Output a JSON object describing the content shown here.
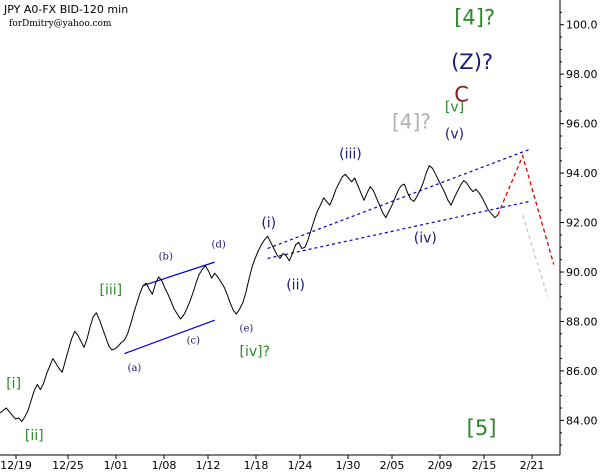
{
  "header": {
    "title": "JPY A0-FX BID-120 min",
    "subtitle": "forDmitry@yahoo.com"
  },
  "colors": {
    "price": "#000000",
    "channel_blue": "#0000cc",
    "wave_green": "#2a8a2a",
    "wave_navy": "#1a1a7a",
    "wave_gray": "#b0b0b0",
    "wave_darkred": "#8b1a1a",
    "forecast_red": "#e00000",
    "forecast_gray": "#c8c8c8",
    "axis": "#000000"
  },
  "chart_data": {
    "type": "line",
    "title": "JPY A0-FX BID-120 min",
    "xlabel": "",
    "ylabel": "",
    "ylim": [
      82.6,
      101.0
    ],
    "y_ticks": [
      "84.00",
      "86.00",
      "88.00",
      "90.00",
      "92.00",
      "94.00",
      "96.00",
      "98.00",
      "100.0"
    ],
    "y_tick_values": [
      84,
      86,
      88,
      90,
      92,
      94,
      96,
      98,
      100
    ],
    "x_ticks": [
      "12/19",
      "12/25",
      "1/01",
      "1/08",
      "1/12",
      "1/18",
      "1/24",
      "1/30",
      "2/05",
      "2/09",
      "2/15",
      "2/21"
    ],
    "grid": false,
    "series": [
      {
        "key": "price",
        "x": [
          0,
          1,
          2,
          3,
          4,
          5,
          6,
          7,
          8,
          9,
          10,
          11,
          12,
          13,
          14,
          15,
          16,
          17,
          18,
          19,
          20,
          21,
          22,
          23,
          24,
          25,
          26,
          27,
          28,
          29,
          30,
          31,
          32,
          33,
          34,
          35,
          36,
          37,
          38,
          39,
          40,
          41,
          42,
          43,
          44,
          45,
          46,
          47,
          48,
          49,
          50,
          51,
          52,
          53,
          54,
          55,
          56,
          57,
          58,
          59,
          60,
          61,
          62,
          63,
          64,
          65,
          66,
          67,
          68,
          69,
          70,
          71,
          72,
          73,
          74,
          75,
          76,
          77,
          78,
          79,
          80,
          81,
          82,
          83,
          84,
          85,
          86,
          87,
          88,
          89,
          90,
          91,
          92,
          93,
          94,
          95,
          96,
          97,
          98,
          99,
          100,
          101,
          102,
          103,
          104,
          105,
          106,
          107,
          108,
          109,
          110,
          111,
          112,
          113,
          114,
          115,
          116,
          117,
          118,
          119,
          120,
          121,
          122,
          123,
          124,
          125,
          126,
          127,
          128,
          129,
          130,
          131,
          132,
          133,
          134,
          135,
          136,
          137,
          138,
          139,
          140,
          141,
          142,
          143,
          144,
          145,
          146,
          147,
          148,
          149,
          150,
          151,
          152,
          153,
          154,
          155,
          156,
          157,
          158,
          159,
          160
        ],
        "values": [
          84.3,
          84.4,
          84.5,
          84.35,
          84.2,
          84.05,
          84.1,
          83.95,
          84.15,
          84.4,
          84.8,
          85.2,
          85.45,
          85.25,
          85.5,
          85.9,
          86.2,
          86.5,
          86.3,
          86.1,
          85.95,
          86.4,
          86.85,
          87.3,
          87.6,
          87.45,
          87.2,
          86.95,
          87.3,
          87.8,
          88.2,
          88.35,
          88.05,
          87.7,
          87.35,
          87.0,
          86.85,
          86.9,
          87.0,
          87.15,
          87.25,
          87.5,
          87.9,
          88.35,
          88.75,
          89.15,
          89.45,
          89.55,
          89.3,
          89.1,
          89.55,
          89.8,
          89.65,
          89.35,
          89.1,
          88.8,
          88.5,
          88.3,
          88.1,
          88.25,
          88.5,
          88.8,
          89.15,
          89.55,
          89.9,
          90.1,
          90.25,
          90.05,
          89.75,
          89.95,
          89.8,
          89.6,
          89.4,
          89.1,
          88.75,
          88.45,
          88.3,
          88.5,
          88.75,
          89.15,
          89.7,
          90.2,
          90.55,
          90.85,
          91.1,
          91.3,
          91.45,
          91.2,
          90.95,
          90.7,
          90.55,
          90.75,
          90.65,
          90.45,
          90.75,
          91.1,
          91.2,
          90.95,
          91.0,
          91.3,
          91.7,
          92.1,
          92.45,
          92.7,
          93.0,
          92.85,
          92.7,
          93.0,
          93.35,
          93.6,
          93.85,
          93.95,
          93.8,
          93.65,
          93.8,
          93.5,
          93.2,
          92.9,
          93.2,
          93.45,
          93.3,
          93.0,
          92.7,
          92.4,
          92.2,
          92.45,
          92.7,
          93.0,
          93.3,
          93.5,
          93.55,
          93.2,
          92.95,
          92.85,
          93.05,
          93.3,
          93.6,
          94.0,
          94.3,
          94.2,
          93.95,
          93.7,
          93.45,
          93.2,
          92.9,
          92.7,
          93.0,
          93.25,
          93.5,
          93.7,
          93.6,
          93.4,
          93.25,
          93.35,
          93.2,
          93.0,
          92.75,
          92.5,
          92.35,
          92.2,
          92.3
        ]
      },
      {
        "key": "forecast_red",
        "x": [
          160,
          168,
          178
        ],
        "values": [
          92.3,
          94.7,
          90.3
        ]
      },
      {
        "key": "forecast_gray",
        "x": [
          168,
          176
        ],
        "values": [
          92.3,
          89.0
        ]
      }
    ],
    "lines": [
      {
        "key": "channel_upper_a",
        "style": "solid",
        "color_key": "channel_blue",
        "x": [
          46,
          69
        ],
        "values": [
          89.45,
          90.4
        ]
      },
      {
        "key": "channel_lower_a",
        "style": "solid",
        "color_key": "channel_blue",
        "x": [
          40,
          69
        ],
        "values": [
          86.7,
          88.05
        ]
      },
      {
        "key": "channel_upper_b",
        "style": "dashed",
        "color_key": "channel_blue",
        "x": [
          86,
          170
        ],
        "values": [
          90.95,
          94.95
        ]
      },
      {
        "key": "channel_lower_b",
        "style": "dashed",
        "color_key": "channel_blue",
        "x": [
          86,
          170
        ],
        "values": [
          90.55,
          92.85
        ]
      }
    ],
    "annotations": [
      {
        "text": "[i]",
        "x": 2,
        "y": 85.3,
        "color_key": "wave_green",
        "size": 14,
        "serif": false
      },
      {
        "text": "[ii]",
        "x": 8,
        "y": 83.2,
        "color_key": "wave_green",
        "size": 14,
        "serif": false
      },
      {
        "text": "[iii]",
        "x": 32,
        "y": 89.1,
        "color_key": "wave_green",
        "size": 14,
        "serif": false
      },
      {
        "text": "(a)",
        "x": 41,
        "y": 86.0,
        "color_key": "wave_navy",
        "size": 10,
        "serif": true
      },
      {
        "text": "(b)",
        "x": 51,
        "y": 90.5,
        "color_key": "wave_navy",
        "size": 10,
        "serif": true
      },
      {
        "text": "(c)",
        "x": 60,
        "y": 87.1,
        "color_key": "wave_navy",
        "size": 10,
        "serif": true
      },
      {
        "text": "(d)",
        "x": 68,
        "y": 91.0,
        "color_key": "wave_navy",
        "size": 10,
        "serif": true
      },
      {
        "text": "(e)",
        "x": 77,
        "y": 87.6,
        "color_key": "wave_navy",
        "size": 10,
        "serif": true
      },
      {
        "text": "[iv]?",
        "x": 77,
        "y": 86.6,
        "color_key": "wave_green",
        "size": 14,
        "serif": false
      },
      {
        "text": "(i)",
        "x": 84,
        "y": 91.8,
        "color_key": "wave_navy",
        "size": 14,
        "serif": false
      },
      {
        "text": "(ii)",
        "x": 92,
        "y": 89.3,
        "color_key": "wave_navy",
        "size": 14,
        "serif": false
      },
      {
        "text": "(iii)",
        "x": 109,
        "y": 94.6,
        "color_key": "wave_navy",
        "size": 14,
        "serif": false
      },
      {
        "text": "(iv)",
        "x": 133,
        "y": 91.2,
        "color_key": "wave_navy",
        "size": 14,
        "serif": false
      },
      {
        "text": "[4]?",
        "x": 126,
        "y": 95.8,
        "color_key": "wave_gray",
        "size": 20,
        "serif": false
      },
      {
        "text": "[v]",
        "x": 143,
        "y": 96.5,
        "color_key": "wave_green",
        "size": 14,
        "serif": false
      },
      {
        "text": "(v)",
        "x": 143,
        "y": 95.4,
        "color_key": "wave_navy",
        "size": 14,
        "serif": false
      },
      {
        "text": "[4]?",
        "x": 146,
        "y": 100.0,
        "color_key": "wave_green",
        "size": 21,
        "serif": false
      },
      {
        "text": "(Z)?",
        "x": 145,
        "y": 98.2,
        "color_key": "wave_navy",
        "size": 21,
        "serif": false
      },
      {
        "text": "C",
        "x": 146,
        "y": 96.9,
        "color_key": "wave_darkred",
        "size": 21,
        "serif": false
      },
      {
        "text": "[5]",
        "x": 150,
        "y": 83.4,
        "color_key": "wave_green",
        "size": 21,
        "serif": false
      }
    ]
  }
}
